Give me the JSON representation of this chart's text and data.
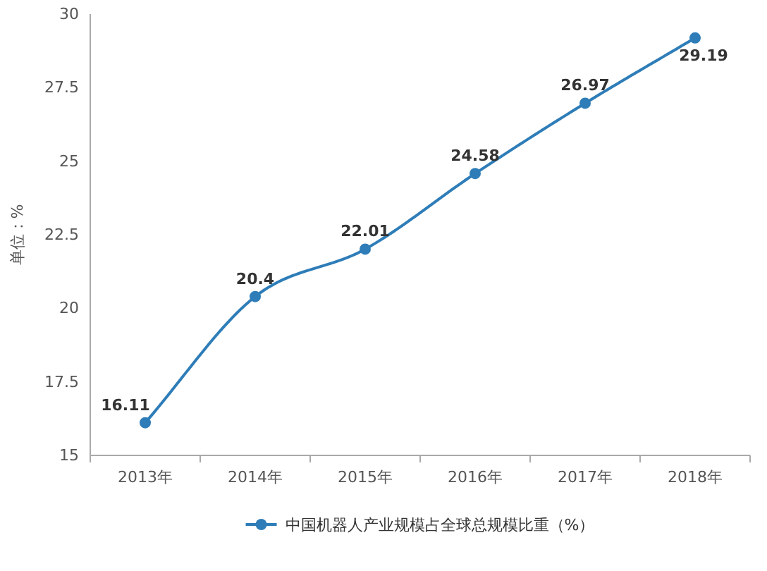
{
  "chart_data": {
    "type": "line",
    "ylabel": "单位：%",
    "categories": [
      "2013年",
      "2014年",
      "2015年",
      "2016年",
      "2017年",
      "2018年"
    ],
    "series": [
      {
        "name": "中国机器人产业规模占全球总规模比重（%）",
        "color": "#2e7db8",
        "values": [
          16.11,
          20.4,
          22.01,
          24.58,
          26.97,
          29.19
        ]
      }
    ],
    "ylim": [
      15,
      30
    ],
    "yticks": [
      15,
      17.5,
      20,
      22.5,
      25,
      27.5,
      30
    ],
    "grid": false,
    "legend": "bottom",
    "marker": "circle",
    "line_style": "solid",
    "data_labels": true
  }
}
